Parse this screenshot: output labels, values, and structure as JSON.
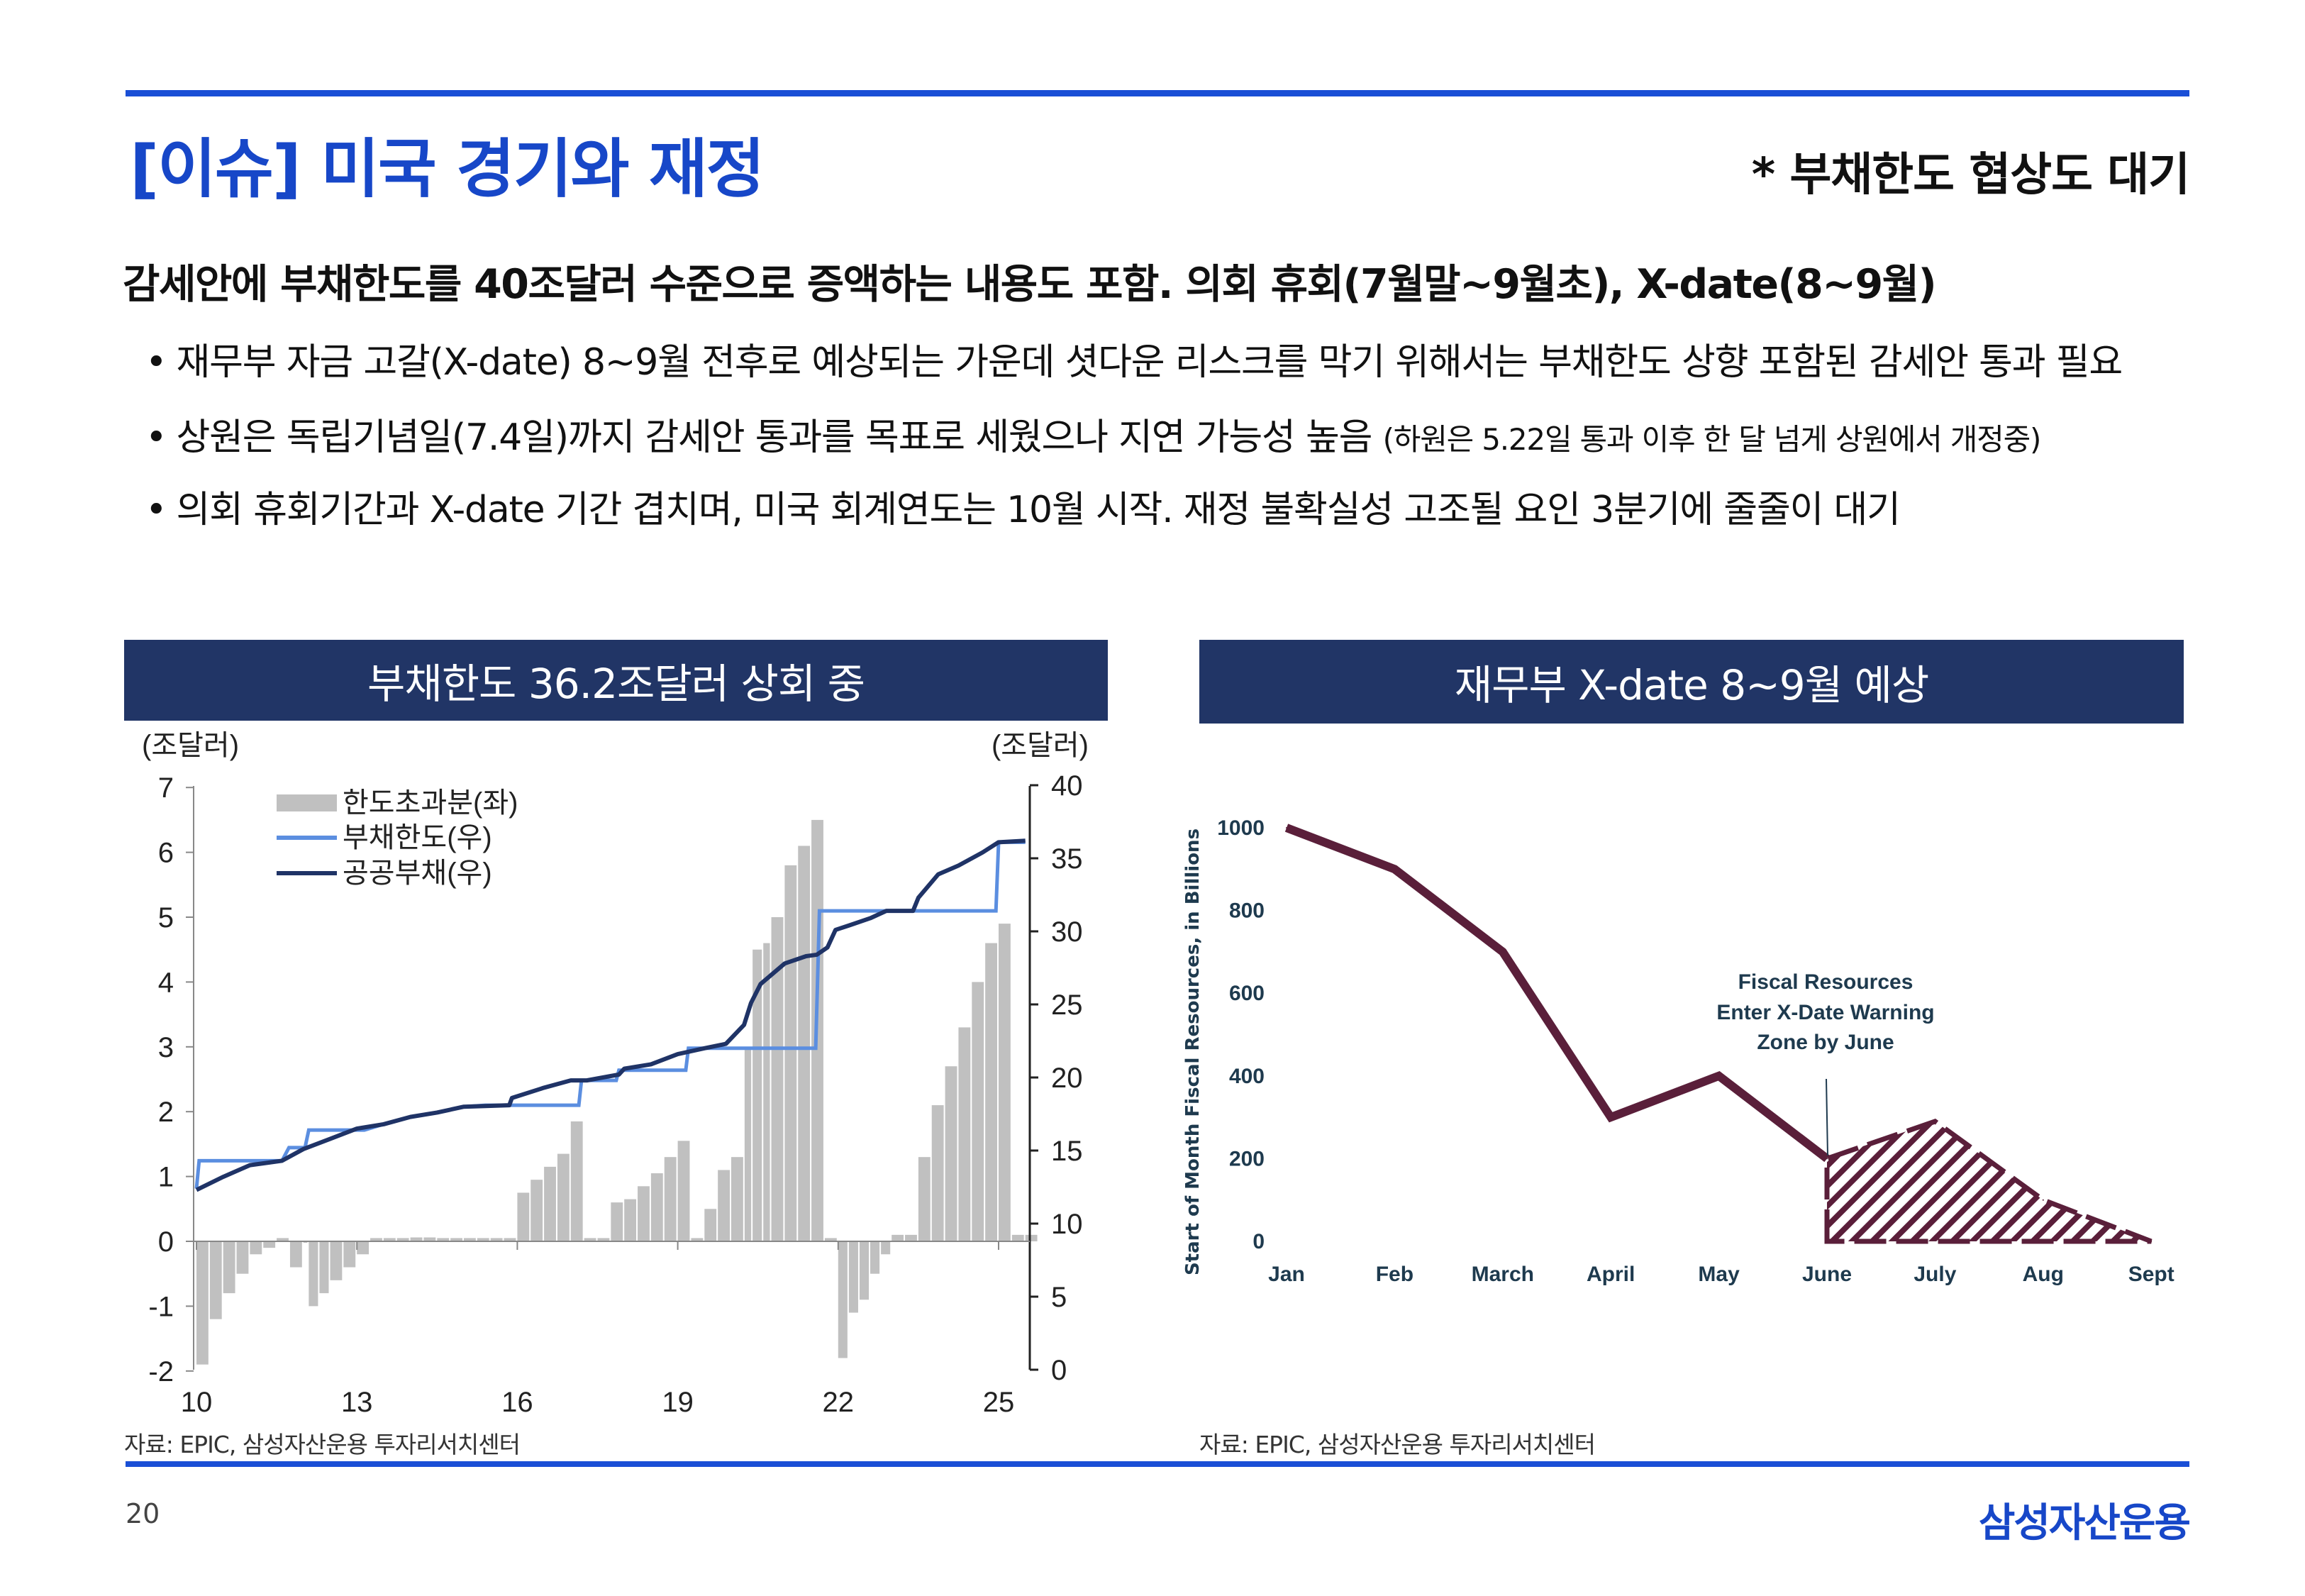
{
  "header": {
    "title": "[이슈] 미국 경기와 재정",
    "tag": "* 부채한도 협상도 대기"
  },
  "headline": "감세안에 부채한도를 40조달러 수준으로 증액하는 내용도 포함. 의회 휴회(7월말~9월초), X-date(8~9월)",
  "bullets": [
    {
      "text": "재무부 자금 고갈(X-date) 8~9월 전후로 예상되는 가운데 셧다운 리스크를 막기 위해서는 부채한도 상향 포함된 감세안 통과 필요",
      "note": ""
    },
    {
      "text": "상원은 독립기념일(7.4일)까지 감세안 통과를 목표로 세웠으나 지연 가능성 높음",
      "note": "(하원은 5.22일 통과 이후 한 달 넘게 상원에서 개정중)"
    },
    {
      "text": "의회 휴회기간과 X-date 기간 겹치며, 미국 회계연도는 10월 시작. 재정 불확실성 고조될 요인 3분기에 줄줄이 대기",
      "note": ""
    }
  ],
  "bullet_symbol": "•",
  "panels": {
    "left_title": "부채한도 36.2조달러 상회 중",
    "right_title": "재무부 X-date 8~9월 예상"
  },
  "sources": {
    "left": "자료: EPIC, 삼성자산운용 투자리서치센터",
    "right": "자료: EPIC, 삼성자산운용 투자리서치센터"
  },
  "footer": {
    "page": "20",
    "logo": "삼성자산운용"
  },
  "colors": {
    "accent": "#1747c8",
    "panel": "#213566",
    "bars": "#c0c0c0",
    "limit": "#5b8ee0",
    "debt": "#1f3366",
    "xdate": "#5a1f3a"
  },
  "chart_data": [
    {
      "type": "bar+line",
      "title": "부채한도 36.2조달러 상회 중",
      "ylabel_left": "(조달러)",
      "ylabel_right": "(조달러)",
      "ylim_left": [
        -2,
        7
      ],
      "ylim_right": [
        0,
        40
      ],
      "yticks_left": [
        "7",
        "6",
        "5",
        "4",
        "3",
        "2",
        "1",
        "0",
        "-1",
        "-2"
      ],
      "yticks_right": [
        "40",
        "35",
        "30",
        "25",
        "20",
        "15",
        "10",
        "5",
        "0"
      ],
      "xticks": [
        "10",
        "13",
        "16",
        "19",
        "22",
        "25"
      ],
      "legend": [
        "한도초과분(좌)",
        "부채한도(우)",
        "공공부채(우)"
      ],
      "legend_position": "top-left",
      "excess_bars": [
        [
          2010.0,
          -1.9
        ],
        [
          2010.25,
          -1.2
        ],
        [
          2010.5,
          -0.8
        ],
        [
          2010.75,
          -0.5
        ],
        [
          2011.0,
          -0.2
        ],
        [
          2011.25,
          -0.1
        ],
        [
          2011.5,
          0.05
        ],
        [
          2011.75,
          -0.4
        ],
        [
          2012.0,
          0.0
        ],
        [
          2012.1,
          -1.0
        ],
        [
          2012.3,
          -0.8
        ],
        [
          2012.5,
          -0.6
        ],
        [
          2012.75,
          -0.4
        ],
        [
          2013.0,
          -0.2
        ],
        [
          2013.25,
          0.05
        ],
        [
          2013.5,
          0.05
        ],
        [
          2013.75,
          0.05
        ],
        [
          2014.0,
          0.06
        ],
        [
          2014.25,
          0.06
        ],
        [
          2014.5,
          0.05
        ],
        [
          2014.75,
          0.05
        ],
        [
          2015.0,
          0.05
        ],
        [
          2015.25,
          0.05
        ],
        [
          2015.5,
          0.05
        ],
        [
          2015.75,
          0.05
        ],
        [
          2016.0,
          0.75
        ],
        [
          2016.25,
          0.95
        ],
        [
          2016.5,
          1.15
        ],
        [
          2016.75,
          1.35
        ],
        [
          2017.0,
          1.85
        ],
        [
          2017.25,
          0.05
        ],
        [
          2017.5,
          0.05
        ],
        [
          2017.75,
          0.6
        ],
        [
          2018.0,
          0.65
        ],
        [
          2018.25,
          0.85
        ],
        [
          2018.5,
          1.05
        ],
        [
          2018.75,
          1.3
        ],
        [
          2019.0,
          1.55
        ],
        [
          2019.25,
          0.05
        ],
        [
          2019.5,
          0.5
        ],
        [
          2019.75,
          1.1
        ],
        [
          2020.0,
          1.3
        ],
        [
          2020.25,
          3.0
        ],
        [
          2020.4,
          4.5
        ],
        [
          2020.6,
          4.6
        ],
        [
          2020.75,
          5.0
        ],
        [
          2021.0,
          5.8
        ],
        [
          2021.25,
          6.1
        ],
        [
          2021.5,
          6.5
        ],
        [
          2021.75,
          0.05
        ],
        [
          2022.0,
          -1.8
        ],
        [
          2022.2,
          -1.1
        ],
        [
          2022.4,
          -0.9
        ],
        [
          2022.6,
          -0.5
        ],
        [
          2022.8,
          -0.2
        ],
        [
          2023.0,
          0.1
        ],
        [
          2023.25,
          0.1
        ],
        [
          2023.5,
          1.3
        ],
        [
          2023.75,
          2.1
        ],
        [
          2024.0,
          2.7
        ],
        [
          2024.25,
          3.3
        ],
        [
          2024.5,
          4.0
        ],
        [
          2024.75,
          4.6
        ],
        [
          2025.0,
          4.9
        ],
        [
          2025.25,
          0.1
        ],
        [
          2025.5,
          0.1
        ]
      ],
      "debt_limit": [
        [
          2010.0,
          12.4
        ],
        [
          2010.05,
          14.3
        ],
        [
          2011.6,
          14.3
        ],
        [
          2011.73,
          15.2
        ],
        [
          2012.03,
          15.2
        ],
        [
          2012.1,
          16.4
        ],
        [
          2013.14,
          16.4
        ],
        [
          2013.5,
          16.8
        ],
        [
          2014.0,
          17.3
        ],
        [
          2014.5,
          17.6
        ],
        [
          2015.0,
          18.0
        ],
        [
          2015.4,
          18.1
        ],
        [
          2017.15,
          18.1
        ],
        [
          2017.2,
          19.8
        ],
        [
          2017.85,
          19.8
        ],
        [
          2017.9,
          20.5
        ],
        [
          2019.15,
          20.5
        ],
        [
          2019.2,
          22.0
        ],
        [
          2021.58,
          22.0
        ],
        [
          2021.65,
          31.4
        ],
        [
          2024.95,
          31.4
        ],
        [
          2025.0,
          36.1
        ],
        [
          2025.5,
          36.1
        ]
      ],
      "public_debt": [
        [
          2010.0,
          12.3
        ],
        [
          2010.5,
          13.2
        ],
        [
          2011.0,
          14.0
        ],
        [
          2011.6,
          14.3
        ],
        [
          2012.0,
          15.1
        ],
        [
          2012.5,
          15.8
        ],
        [
          2013.0,
          16.5
        ],
        [
          2013.5,
          16.8
        ],
        [
          2014.0,
          17.3
        ],
        [
          2014.5,
          17.6
        ],
        [
          2015.0,
          18.0
        ],
        [
          2015.85,
          18.1
        ],
        [
          2015.9,
          18.6
        ],
        [
          2016.5,
          19.3
        ],
        [
          2017.0,
          19.8
        ],
        [
          2017.3,
          19.8
        ],
        [
          2017.9,
          20.2
        ],
        [
          2018.0,
          20.6
        ],
        [
          2018.5,
          20.9
        ],
        [
          2019.0,
          21.6
        ],
        [
          2019.5,
          22.0
        ],
        [
          2019.9,
          22.3
        ],
        [
          2020.24,
          23.6
        ],
        [
          2020.37,
          25.1
        ],
        [
          2020.55,
          26.4
        ],
        [
          2021.0,
          27.8
        ],
        [
          2021.4,
          28.3
        ],
        [
          2021.6,
          28.4
        ],
        [
          2021.8,
          28.9
        ],
        [
          2021.95,
          30.1
        ],
        [
          2022.2,
          30.4
        ],
        [
          2022.6,
          30.9
        ],
        [
          2022.9,
          31.4
        ],
        [
          2023.4,
          31.4
        ],
        [
          2023.5,
          32.3
        ],
        [
          2023.87,
          33.9
        ],
        [
          2024.25,
          34.5
        ],
        [
          2024.7,
          35.4
        ],
        [
          2025.0,
          36.1
        ],
        [
          2025.5,
          36.2
        ]
      ]
    },
    {
      "type": "line",
      "title": "재무부 X-date 8~9월 예상",
      "ylabel": "Start of Month Fiscal Resources, in Billions",
      "ylim": [
        0,
        1000
      ],
      "yticks": [
        "1000",
        "800",
        "600",
        "400",
        "200",
        "0"
      ],
      "categories": [
        "Jan",
        "Feb",
        "March",
        "April",
        "May",
        "June",
        "July",
        "Aug",
        "Sept"
      ],
      "values": [
        1000,
        900,
        700,
        300,
        400,
        200,
        290,
        100,
        0
      ],
      "projected_from": "June",
      "annotation": [
        "Fiscal Resources",
        "Enter X-Date Warning",
        "Zone by June"
      ]
    }
  ]
}
